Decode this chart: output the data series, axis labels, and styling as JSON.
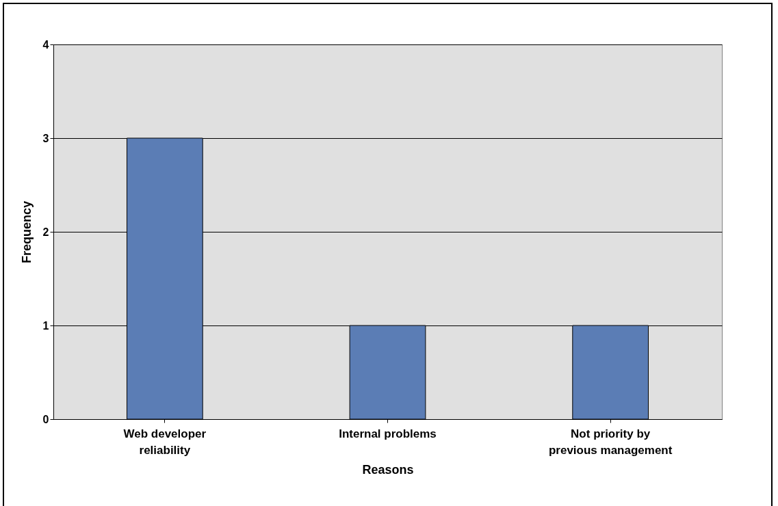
{
  "chart_data": {
    "type": "bar",
    "xlabel": "Reasons",
    "ylabel": "Frequency",
    "categories": [
      "Web developer reliability",
      "Internal problems",
      "Not priority by previous  management"
    ],
    "values": [
      3,
      1,
      1
    ],
    "color": "#5b7db5",
    "ylim": [
      0,
      4
    ],
    "yticks": [
      0,
      1,
      2,
      3,
      4
    ],
    "grid": "y"
  }
}
